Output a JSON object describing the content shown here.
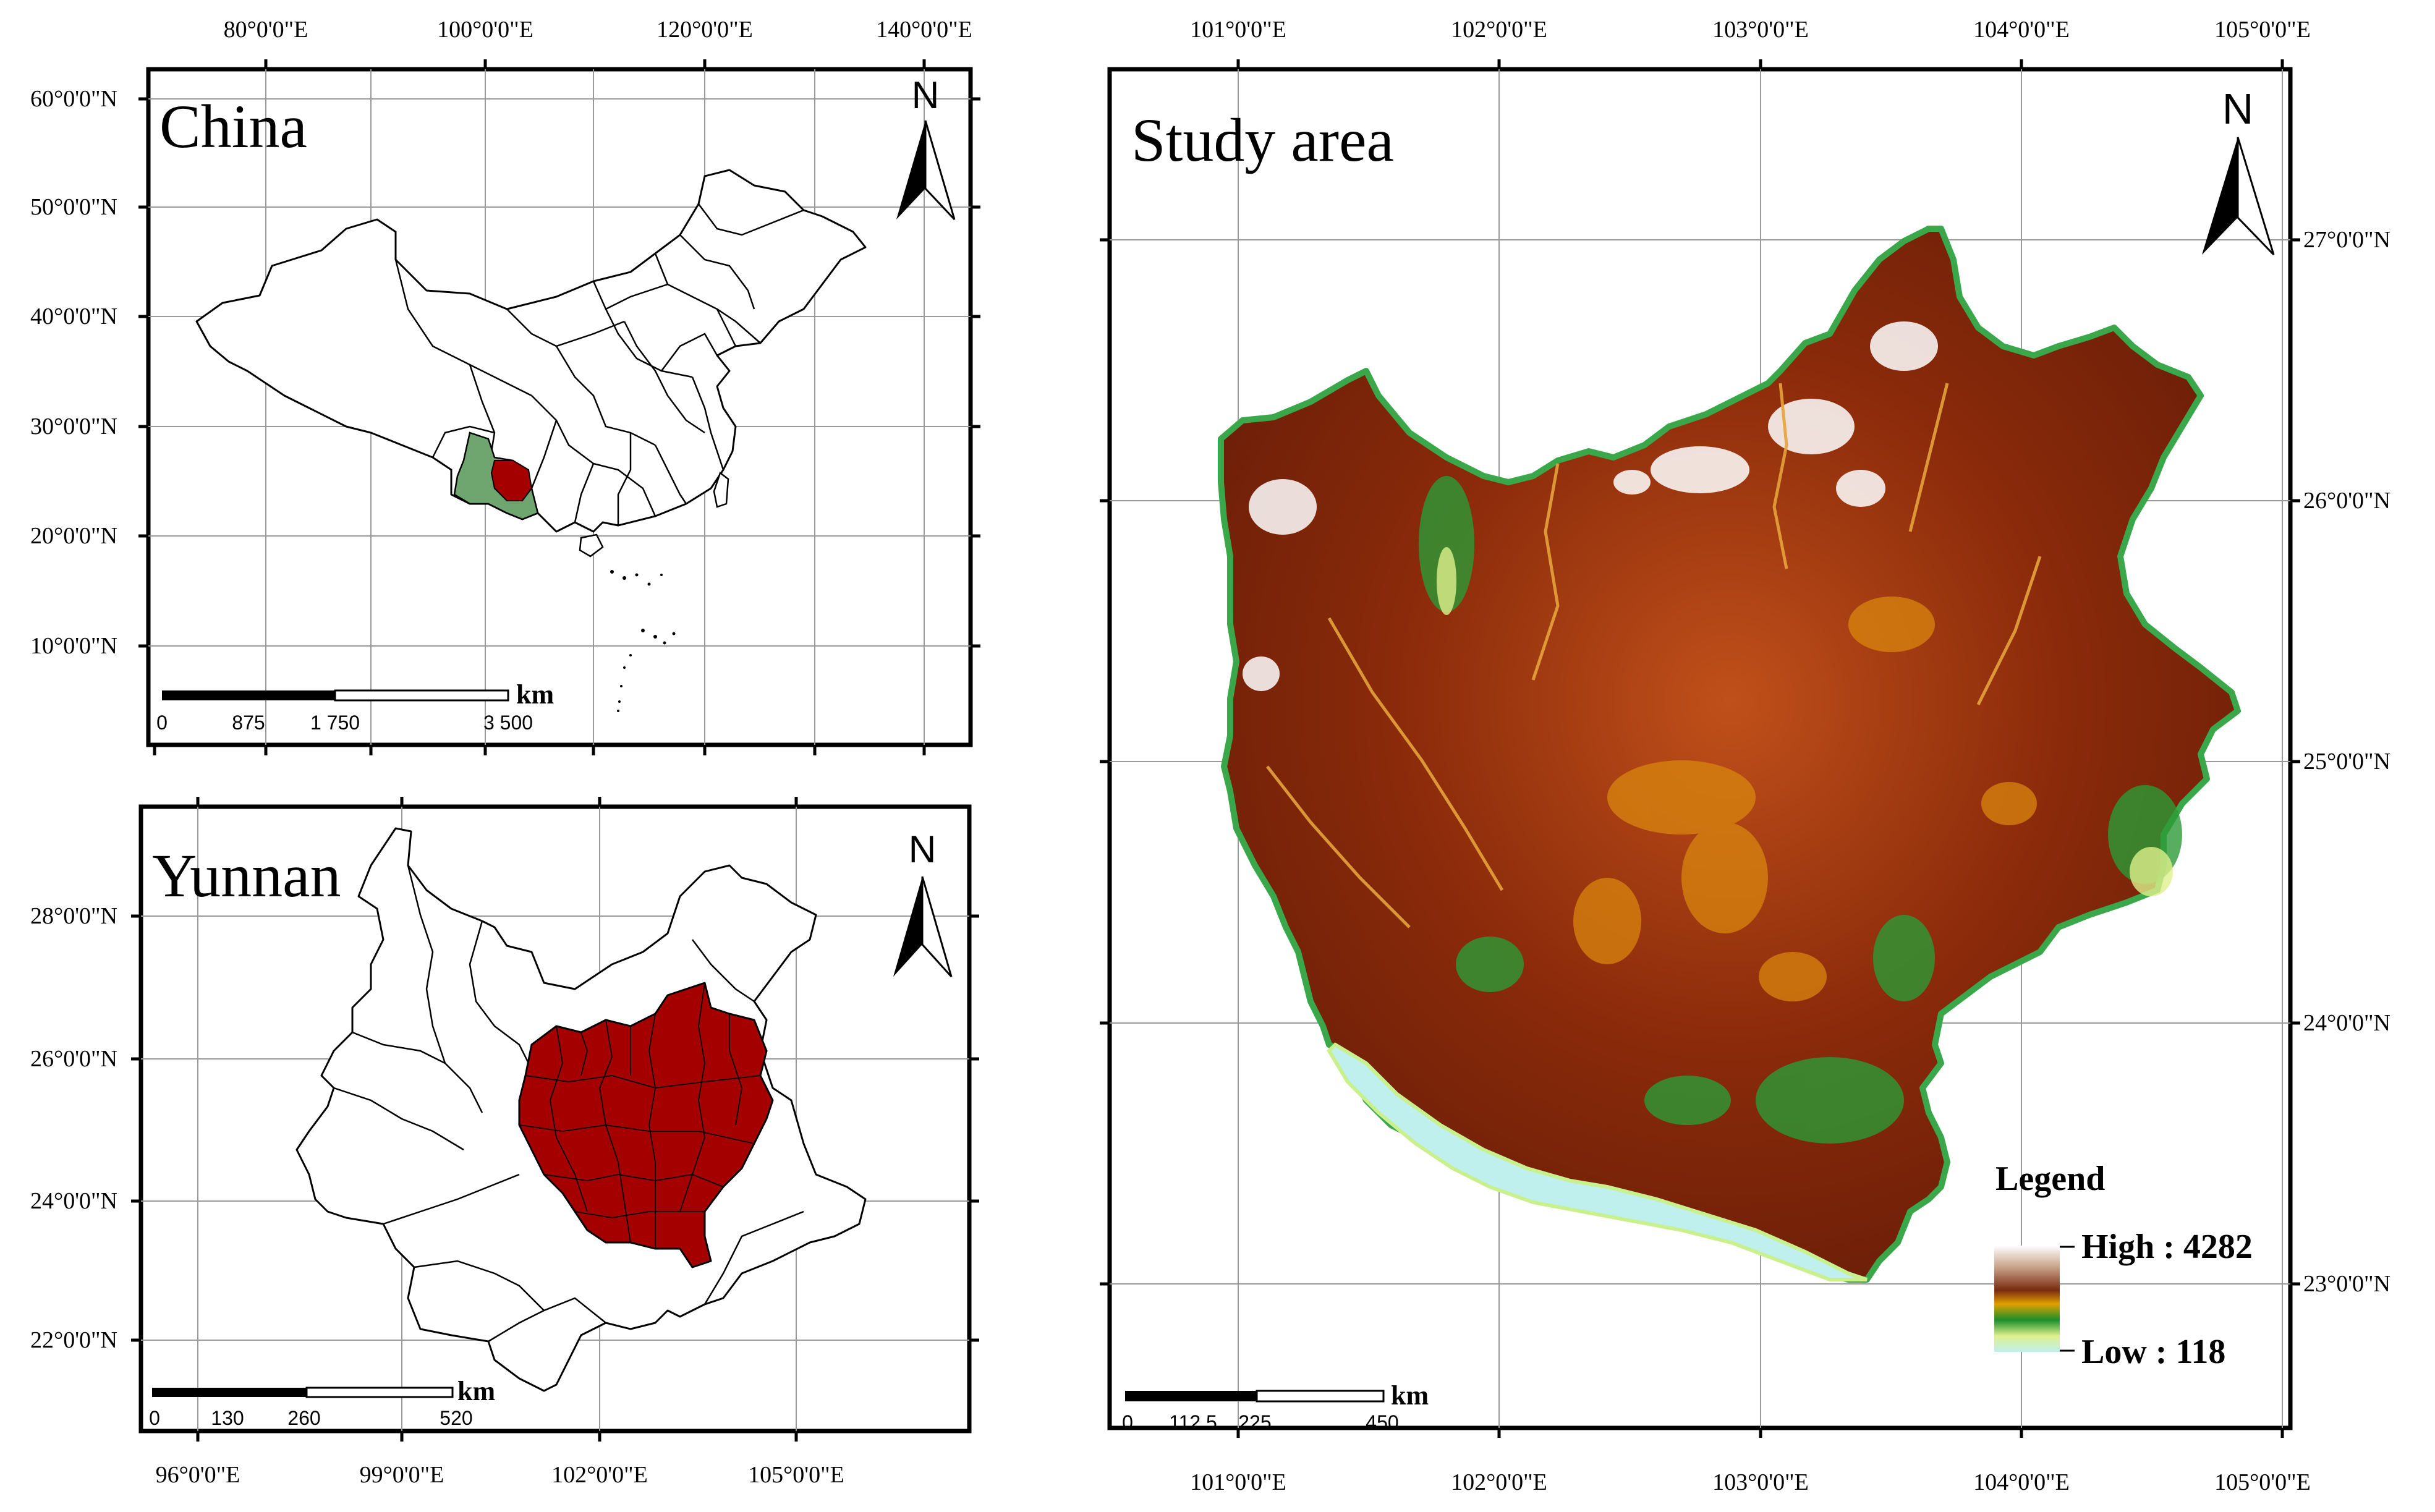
{
  "china_map": {
    "title": "China",
    "north": "N",
    "top_ticks": [
      "80°0'0\"E",
      "100°0'0\"E",
      "120°0'0\"E",
      "140°0'0\"E"
    ],
    "left_ticks": [
      "60°0'0\"N",
      "50°0'0\"N",
      "40°0'0\"N",
      "30°0'0\"N",
      "20°0'0\"N",
      "10°0'0\"N"
    ],
    "scale": {
      "unit": "km",
      "labels": [
        "0",
        "875",
        "1 750",
        "3 500"
      ]
    },
    "fill_colors": {
      "yunnan": "#6fa56f",
      "study_area": "#a50000"
    }
  },
  "yunnan_map": {
    "title": "Yunnan",
    "north": "N",
    "left_ticks": [
      "28°0'0\"N",
      "26°0'0\"N",
      "24°0'0\"N",
      "22°0'0\"N"
    ],
    "bottom_ticks": [
      "96°0'0\"E",
      "99°0'0\"E",
      "102°0'0\"E",
      "105°0'0\"E"
    ],
    "scale": {
      "unit": "km",
      "labels": [
        "0",
        "130",
        "260",
        "520"
      ]
    },
    "fill_colors": {
      "study_area": "#a50000"
    }
  },
  "study_map": {
    "title": "Study area",
    "north": "N",
    "top_ticks": [
      "101°0'0\"E",
      "102°0'0\"E",
      "103°0'0\"E",
      "104°0'0\"E",
      "105°0'0\"E"
    ],
    "bottom_ticks": [
      "101°0'0\"E",
      "102°0'0\"E",
      "103°0'0\"E",
      "104°0'0\"E",
      "105°0'0\"E"
    ],
    "right_ticks": [
      "27°0'0\"N",
      "26°0'0\"N",
      "25°0'0\"N",
      "24°0'0\"N",
      "23°0'0\"N"
    ],
    "scale": {
      "unit": "km",
      "labels": [
        "0",
        "112.5",
        "225",
        "450"
      ]
    },
    "legend": {
      "title": "Legend",
      "high_label": "High : 4282",
      "low_label": "Low : 118",
      "high_value": 4282,
      "low_value": 118,
      "ramp_colors": [
        "#ffffff",
        "#8b4513",
        "#8b1a00",
        "#e0a000",
        "#1a8f2a",
        "#c8f08c",
        "#bff0ee"
      ]
    }
  }
}
